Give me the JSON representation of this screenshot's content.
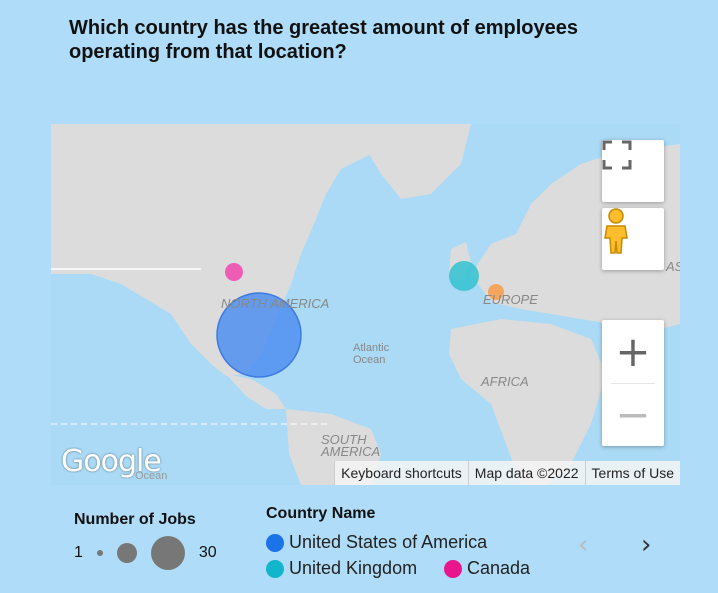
{
  "title": "Which country has the greatest amount of employees operating from that location?",
  "map": {
    "labels": {
      "north_america": "NORTH AMERICA",
      "europe": "EUROPE",
      "africa": "AFRICA",
      "south_america": "SOUTH AMERICA",
      "atlantic": "Atlantic Ocean",
      "as": "AS",
      "ocean": "Ocean"
    },
    "google_logo": "Google",
    "attribution": {
      "shortcuts": "Keyboard shortcuts",
      "data": "Map data ©2022",
      "terms": "Terms of Use"
    },
    "controls": {
      "fullscreen": "fullscreen-icon",
      "pegman": "pegman-icon",
      "zoom_in": "+",
      "zoom_out": "−"
    },
    "bubbles": [
      {
        "country": "United States of America",
        "color": "#4f8ff0"
      },
      {
        "country": "United Kingdom",
        "color": "#33c2d0"
      },
      {
        "country": "Canada",
        "color": "#ee4fb0"
      },
      {
        "country": "Europe marker",
        "color": "#f7a050"
      }
    ]
  },
  "legend": {
    "jobs_title": "Number of Jobs",
    "jobs_min": "1",
    "jobs_max": "30",
    "country_title": "Country Name",
    "countries": [
      {
        "name": "United States of America",
        "color": "#1a73e8"
      },
      {
        "name": "United Kingdom",
        "color": "#12b5cb"
      },
      {
        "name": "Canada",
        "color": "#e8168c"
      }
    ],
    "prev": "‹",
    "next": "›"
  }
}
